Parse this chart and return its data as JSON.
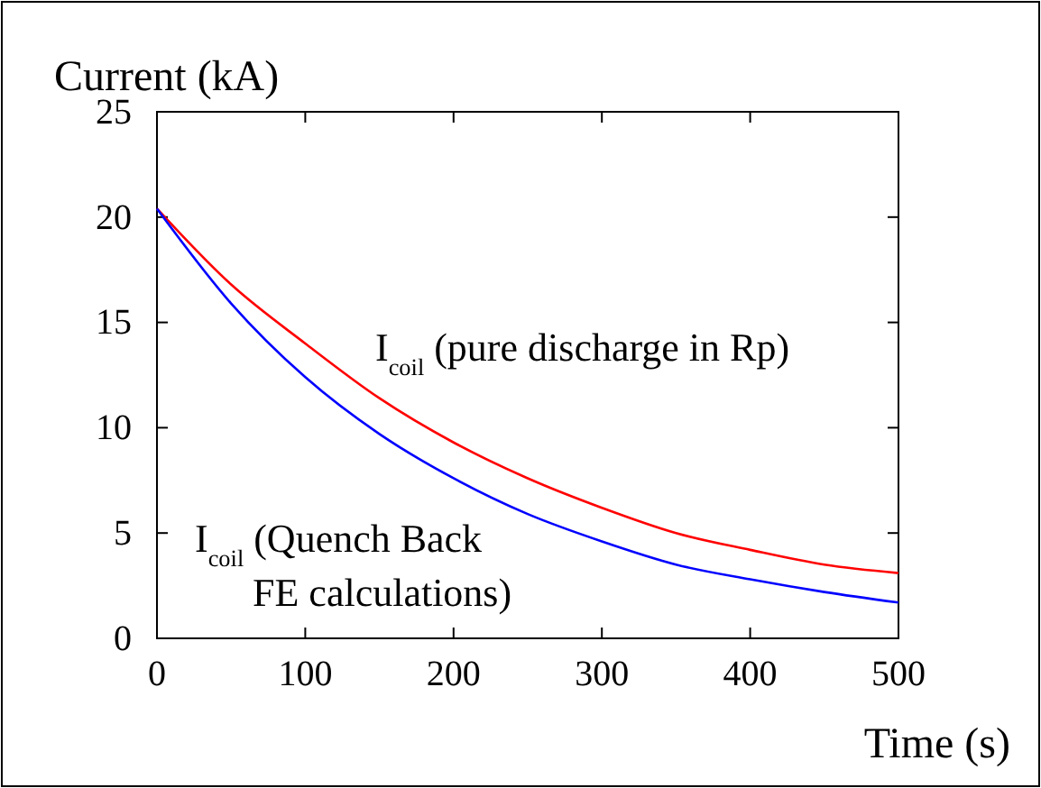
{
  "chart_data": {
    "type": "line",
    "title": "Current (kA)",
    "xlabel": "Time (s)",
    "xlim": [
      0,
      500
    ],
    "ylim": [
      0,
      25
    ],
    "xticks": [
      0,
      100,
      200,
      300,
      400,
      500
    ],
    "yticks": [
      0,
      5,
      10,
      15,
      20,
      25
    ],
    "grid": false,
    "x": [
      0,
      50,
      100,
      150,
      200,
      250,
      300,
      350,
      400,
      450,
      500
    ],
    "series": [
      {
        "color": "#ff0000",
        "values": [
          20.4,
          16.8,
          14.0,
          11.4,
          9.3,
          7.6,
          6.2,
          5.0,
          4.2,
          3.5,
          3.1
        ]
      },
      {
        "color": "#0000ff",
        "values": [
          20.4,
          15.9,
          12.4,
          9.7,
          7.6,
          5.9,
          4.6,
          3.5,
          2.8,
          2.2,
          1.7
        ]
      }
    ],
    "annotations": [
      "I$_{coil}$ (pure discharge in Rp)",
      "I$_{coil}$ (Quench Back\nFE calculations)"
    ]
  }
}
